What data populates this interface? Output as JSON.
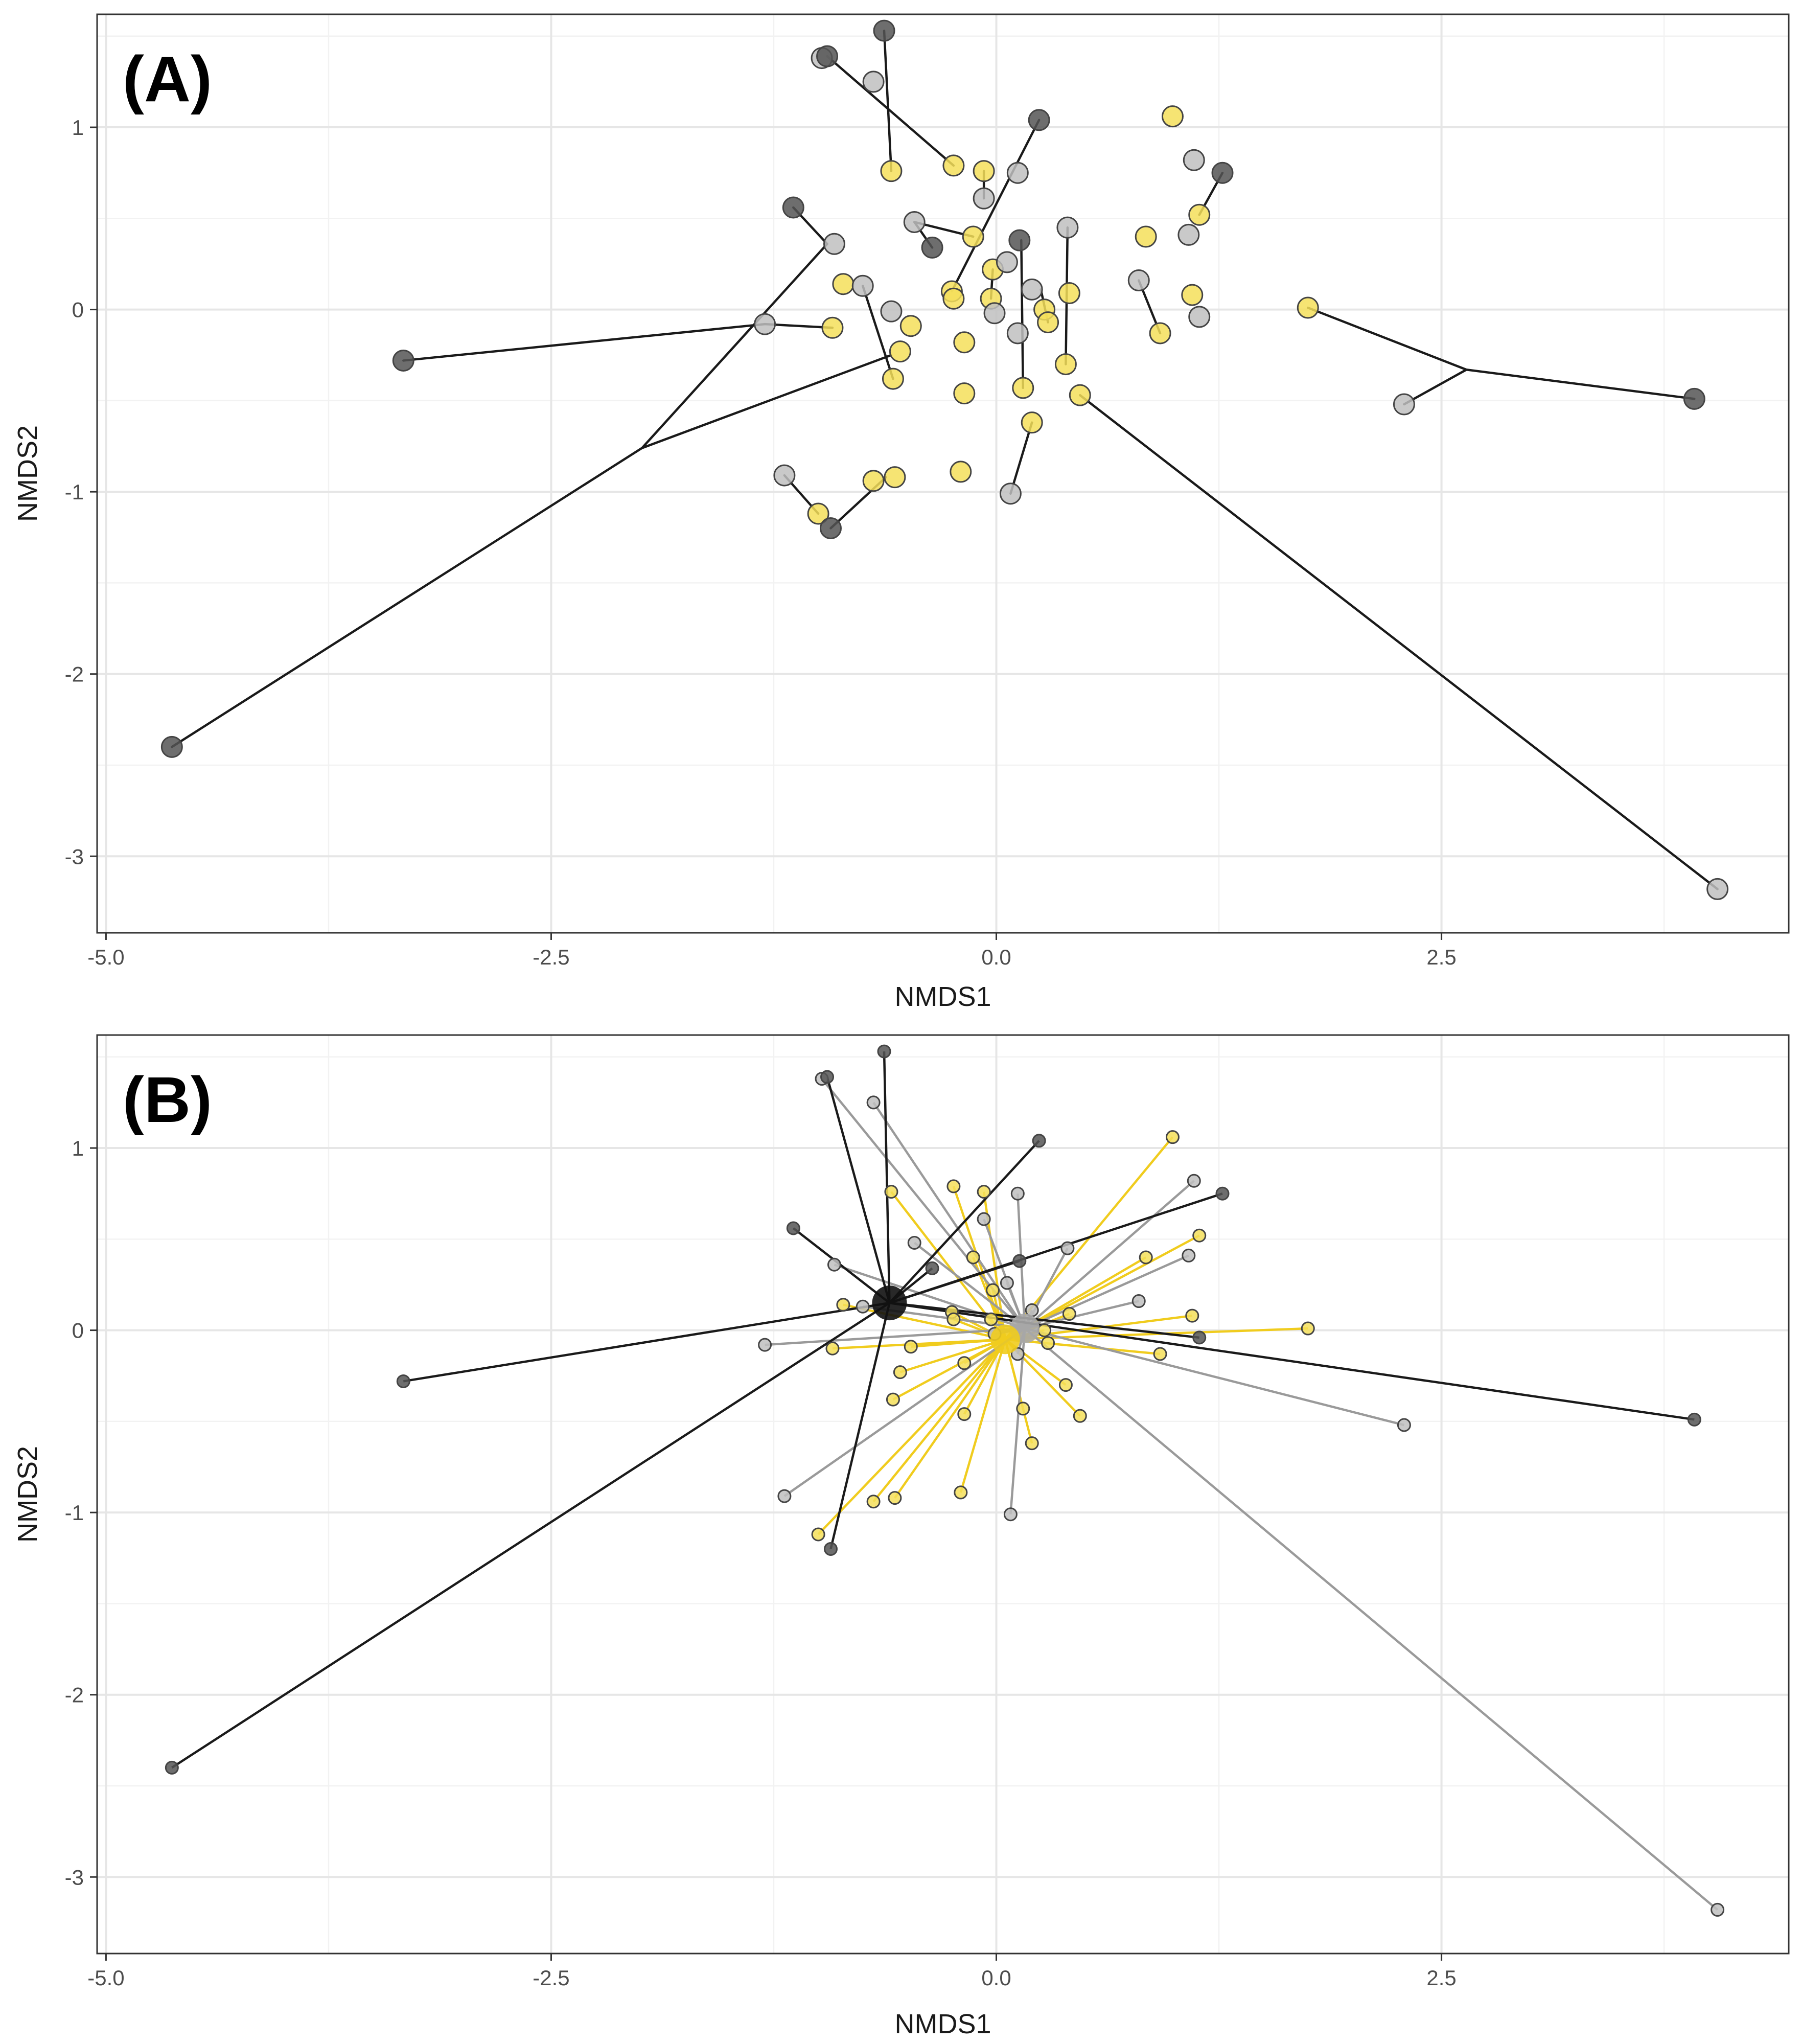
{
  "colors": {
    "group_dark": "#555555",
    "group_grey": "#c0c0c0",
    "group_yellow": "#f5df5a",
    "line_dark": "#1a1a1a",
    "line_grey": "#9a9a9a",
    "line_yellow": "#f0cc1e",
    "grid_major": "#e6e6e6",
    "grid_minor": "#f2f2f2",
    "frame": "#333333"
  },
  "chart_data": [
    {
      "type": "scatter",
      "panel_label": "(A)",
      "xlabel": "NMDS1",
      "ylabel": "NMDS2",
      "xlim": [
        -5.05,
        4.45
      ],
      "ylim": [
        -3.42,
        1.62
      ],
      "xticks": [
        -5.0,
        -2.5,
        0.0,
        2.5
      ],
      "xtick_labels": [
        "-5.0",
        "-2.5",
        "0.0",
        "2.5"
      ],
      "yticks": [
        -3,
        -2,
        -1,
        0,
        1
      ],
      "ytick_labels": [
        "-3",
        "-2",
        "-1",
        "0",
        "1"
      ],
      "connector_style": "paired lines / branching segments between samples",
      "connectors": [
        [
          [
            -0.63,
            1.53
          ],
          [
            -0.59,
            0.76
          ]
        ],
        [
          [
            -0.95,
            1.39
          ],
          [
            -0.24,
            0.79
          ]
        ],
        [
          [
            0.24,
            1.04
          ],
          [
            -0.25,
            0.1
          ]
        ],
        [
          [
            1.27,
            0.75
          ],
          [
            1.14,
            0.52
          ]
        ],
        [
          [
            -1.14,
            0.56
          ],
          [
            -0.95,
            0.36
          ]
        ],
        [
          [
            -0.95,
            0.36
          ],
          [
            -1.99,
            -0.76
          ]
        ],
        [
          [
            -1.99,
            -0.76
          ],
          [
            -4.63,
            -2.4
          ]
        ],
        [
          [
            -1.99,
            -0.76
          ],
          [
            -0.59,
            -0.25
          ]
        ],
        [
          [
            -3.33,
            -0.28
          ],
          [
            -1.3,
            -0.08
          ]
        ],
        [
          [
            -1.3,
            -0.08
          ],
          [
            -0.92,
            -0.1
          ]
        ],
        [
          [
            -0.75,
            0.13
          ],
          [
            -0.58,
            -0.38
          ]
        ],
        [
          [
            -0.93,
            -1.2
          ],
          [
            -0.62,
            -0.92
          ]
        ],
        [
          [
            -1.19,
            -0.91
          ],
          [
            -1.0,
            -1.12
          ]
        ],
        [
          [
            0.4,
            0.45
          ],
          [
            0.39,
            -0.3
          ]
        ],
        [
          [
            0.14,
            0.38
          ],
          [
            0.15,
            -0.43
          ]
        ],
        [
          [
            0.08,
            -1.01
          ],
          [
            0.2,
            -0.62
          ]
        ],
        [
          [
            0.8,
            0.16
          ],
          [
            0.92,
            -0.13
          ]
        ],
        [
          [
            -0.36,
            0.34
          ],
          [
            -0.46,
            0.48
          ]
        ],
        [
          [
            -0.46,
            0.48
          ],
          [
            -0.13,
            0.4
          ]
        ],
        [
          [
            -0.07,
            0.76
          ],
          [
            -0.07,
            0.61
          ]
        ],
        [
          [
            -0.02,
            0.22
          ],
          [
            -0.03,
            0.06
          ]
        ],
        [
          [
            0.25,
            0.11
          ],
          [
            0.29,
            -0.07
          ]
        ],
        [
          [
            0.47,
            -0.47
          ],
          [
            4.05,
            -3.18
          ]
        ],
        [
          [
            1.75,
            0.01
          ],
          [
            2.64,
            -0.33
          ]
        ],
        [
          [
            2.64,
            -0.33
          ],
          [
            3.92,
            -0.49
          ]
        ],
        [
          [
            2.64,
            -0.33
          ],
          [
            2.29,
            -0.52
          ]
        ]
      ],
      "series": [
        {
          "name": "dark",
          "color_key": "group_dark",
          "points": [
            [
              -0.63,
              1.53
            ],
            [
              -0.95,
              1.39
            ],
            [
              0.24,
              1.04
            ],
            [
              1.27,
              0.75
            ],
            [
              -1.14,
              0.56
            ],
            [
              0.13,
              0.38
            ],
            [
              -0.36,
              0.34
            ],
            [
              -3.33,
              -0.28
            ],
            [
              3.92,
              -0.49
            ],
            [
              -0.93,
              -1.2
            ],
            [
              -4.63,
              -2.4
            ]
          ]
        },
        {
          "name": "grey",
          "color_key": "group_grey",
          "points": [
            [
              -0.98,
              1.38
            ],
            [
              -0.69,
              1.25
            ],
            [
              1.11,
              0.82
            ],
            [
              0.12,
              0.75
            ],
            [
              -0.07,
              0.61
            ],
            [
              -0.46,
              0.48
            ],
            [
              0.4,
              0.45
            ],
            [
              1.08,
              0.41
            ],
            [
              -0.91,
              0.36
            ],
            [
              0.06,
              0.26
            ],
            [
              -0.75,
              0.13
            ],
            [
              0.8,
              0.16
            ],
            [
              0.2,
              0.11
            ],
            [
              -0.01,
              -0.02
            ],
            [
              -0.59,
              -0.01
            ],
            [
              1.14,
              -0.04
            ],
            [
              -1.3,
              -0.08
            ],
            [
              0.12,
              -0.13
            ],
            [
              2.29,
              -0.52
            ],
            [
              -1.19,
              -0.91
            ],
            [
              0.08,
              -1.01
            ],
            [
              4.05,
              -3.18
            ]
          ]
        },
        {
          "name": "yellow",
          "color_key": "group_yellow",
          "points": [
            [
              0.99,
              1.06
            ],
            [
              -0.24,
              0.79
            ],
            [
              -0.07,
              0.76
            ],
            [
              -0.59,
              0.76
            ],
            [
              1.14,
              0.52
            ],
            [
              -0.13,
              0.4
            ],
            [
              0.84,
              0.4
            ],
            [
              -0.02,
              0.22
            ],
            [
              -0.25,
              0.1
            ],
            [
              0.41,
              0.09
            ],
            [
              -0.86,
              0.14
            ],
            [
              1.1,
              0.08
            ],
            [
              -0.24,
              0.06
            ],
            [
              -0.03,
              0.06
            ],
            [
              1.75,
              0.01
            ],
            [
              0.27,
              0.0
            ],
            [
              0.29,
              -0.07
            ],
            [
              -0.48,
              -0.09
            ],
            [
              -0.92,
              -0.1
            ],
            [
              0.92,
              -0.13
            ],
            [
              -0.18,
              -0.18
            ],
            [
              -0.54,
              -0.23
            ],
            [
              0.39,
              -0.3
            ],
            [
              -0.58,
              -0.38
            ],
            [
              0.15,
              -0.43
            ],
            [
              -0.18,
              -0.46
            ],
            [
              0.47,
              -0.47
            ],
            [
              0.2,
              -0.62
            ],
            [
              -0.2,
              -0.89
            ],
            [
              -0.57,
              -0.92
            ],
            [
              -0.69,
              -0.94
            ],
            [
              -1.0,
              -1.12
            ]
          ]
        }
      ]
    },
    {
      "type": "scatter",
      "panel_label": "(B)",
      "xlabel": "NMDS1",
      "ylabel": "NMDS2",
      "xlim": [
        -5.05,
        4.45
      ],
      "ylim": [
        -3.42,
        1.62
      ],
      "xticks": [
        -5.0,
        -2.5,
        0.0,
        2.5
      ],
      "xtick_labels": [
        "-5.0",
        "-2.5",
        "0.0",
        "2.5"
      ],
      "yticks": [
        -3,
        -2,
        -1,
        0,
        1
      ],
      "ytick_labels": [
        "-3",
        "-2",
        "-1",
        "0",
        "1"
      ],
      "connector_style": "spider lines from each sample to its group centroid",
      "centroids": [
        {
          "name": "dark",
          "color_key": "group_dark",
          "x": -0.6,
          "y": 0.15
        },
        {
          "name": "grey",
          "color_key": "group_grey",
          "x": 0.16,
          "y": 0.01
        },
        {
          "name": "yellow",
          "color_key": "group_yellow",
          "x": 0.05,
          "y": -0.05
        }
      ],
      "series": [
        {
          "name": "dark",
          "color_key": "group_dark",
          "line_key": "line_dark",
          "points": [
            [
              -0.63,
              1.53
            ],
            [
              -0.95,
              1.39
            ],
            [
              0.24,
              1.04
            ],
            [
              1.27,
              0.75
            ],
            [
              -1.14,
              0.56
            ],
            [
              0.13,
              0.38
            ],
            [
              -0.36,
              0.34
            ],
            [
              -3.33,
              -0.28
            ],
            [
              3.92,
              -0.49
            ],
            [
              -0.93,
              -1.2
            ],
            [
              -4.63,
              -2.4
            ],
            [
              1.14,
              -0.04
            ]
          ]
        },
        {
          "name": "grey",
          "color_key": "group_grey",
          "line_key": "line_grey",
          "points": [
            [
              -0.98,
              1.38
            ],
            [
              -0.69,
              1.25
            ],
            [
              1.11,
              0.82
            ],
            [
              0.12,
              0.75
            ],
            [
              -0.07,
              0.61
            ],
            [
              -0.46,
              0.48
            ],
            [
              0.4,
              0.45
            ],
            [
              1.08,
              0.41
            ],
            [
              -0.91,
              0.36
            ],
            [
              0.06,
              0.26
            ],
            [
              -0.75,
              0.13
            ],
            [
              0.8,
              0.16
            ],
            [
              0.2,
              0.11
            ],
            [
              -0.01,
              -0.02
            ],
            [
              -1.3,
              -0.08
            ],
            [
              0.12,
              -0.13
            ],
            [
              2.29,
              -0.52
            ],
            [
              -1.19,
              -0.91
            ],
            [
              0.08,
              -1.01
            ],
            [
              4.05,
              -3.18
            ]
          ]
        },
        {
          "name": "yellow",
          "color_key": "group_yellow",
          "line_key": "line_yellow",
          "points": [
            [
              0.99,
              1.06
            ],
            [
              -0.24,
              0.79
            ],
            [
              -0.07,
              0.76
            ],
            [
              -0.59,
              0.76
            ],
            [
              1.14,
              0.52
            ],
            [
              -0.13,
              0.4
            ],
            [
              0.84,
              0.4
            ],
            [
              -0.02,
              0.22
            ],
            [
              -0.25,
              0.1
            ],
            [
              0.41,
              0.09
            ],
            [
              -0.86,
              0.14
            ],
            [
              1.1,
              0.08
            ],
            [
              -0.24,
              0.06
            ],
            [
              -0.03,
              0.06
            ],
            [
              1.75,
              0.01
            ],
            [
              0.27,
              0.0
            ],
            [
              0.29,
              -0.07
            ],
            [
              -0.48,
              -0.09
            ],
            [
              -0.92,
              -0.1
            ],
            [
              0.92,
              -0.13
            ],
            [
              -0.18,
              -0.18
            ],
            [
              -0.54,
              -0.23
            ],
            [
              0.39,
              -0.3
            ],
            [
              -0.58,
              -0.38
            ],
            [
              0.15,
              -0.43
            ],
            [
              -0.18,
              -0.46
            ],
            [
              0.47,
              -0.47
            ],
            [
              0.2,
              -0.62
            ],
            [
              -0.2,
              -0.89
            ],
            [
              -0.57,
              -0.92
            ],
            [
              -0.69,
              -0.94
            ],
            [
              -1.0,
              -1.12
            ]
          ]
        }
      ]
    }
  ]
}
